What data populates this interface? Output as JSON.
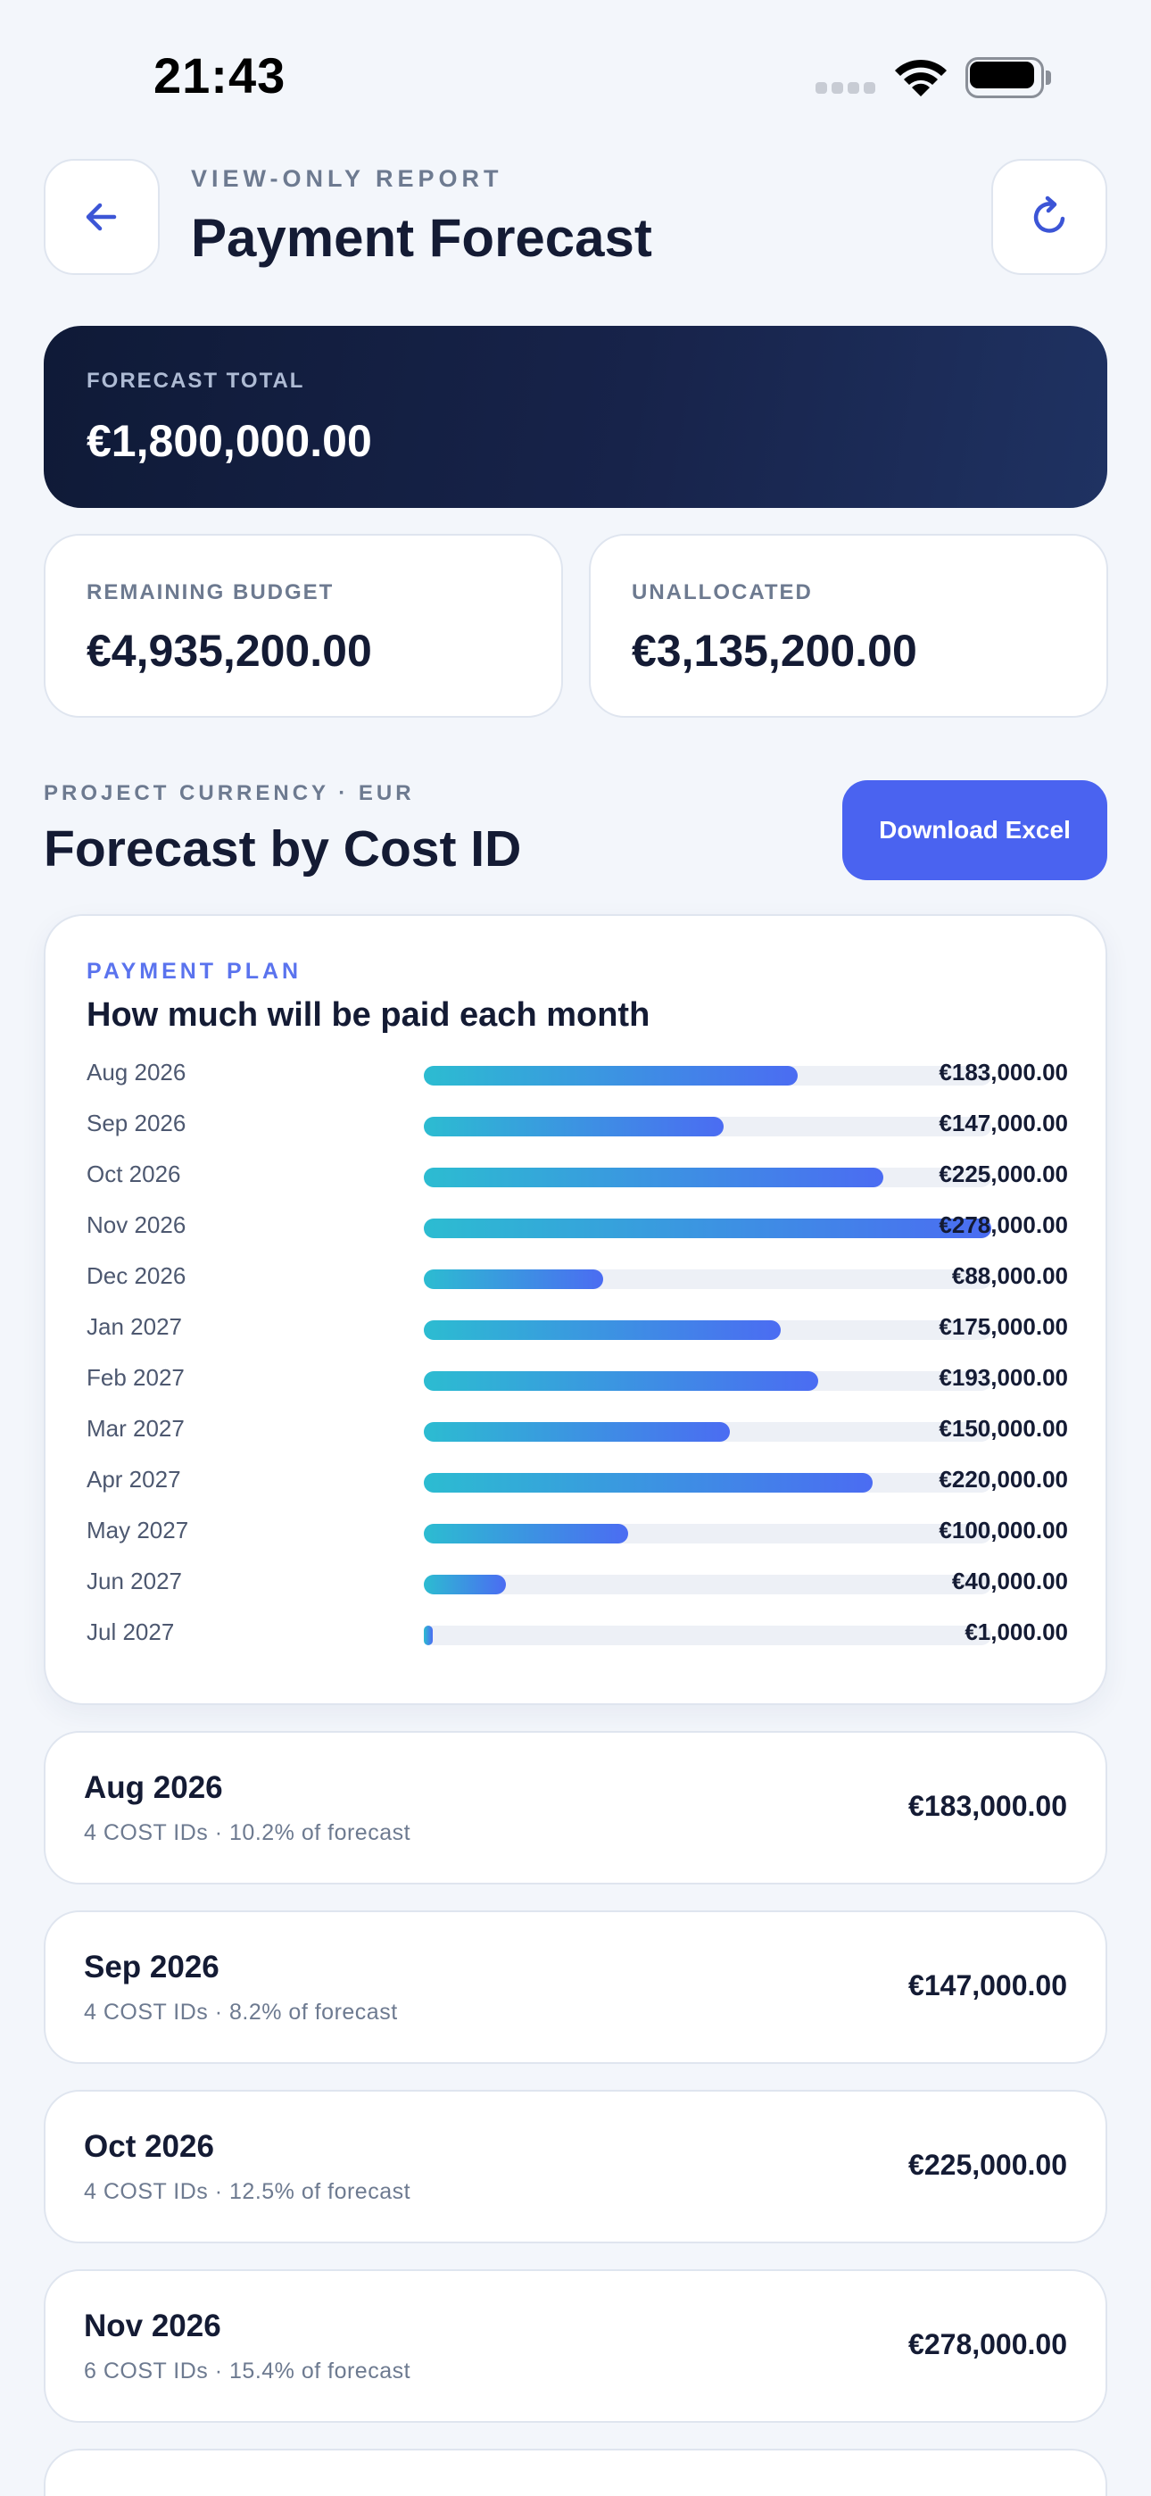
{
  "status_bar": {
    "time": "21:43"
  },
  "header": {
    "eyebrow": "VIEW-ONLY REPORT",
    "title": "Payment Forecast",
    "back_icon": "arrow-left-icon",
    "refresh_icon": "refresh-icon"
  },
  "summary": {
    "total_label": "FORECAST TOTAL",
    "total_value": "€1,800,000.00",
    "remaining_label": "REMAINING BUDGET",
    "remaining_value": "€4,935,200.00",
    "unallocated_label": "UNALLOCATED",
    "unallocated_value": "€3,135,200.00"
  },
  "section": {
    "eyebrow": "PROJECT CURRENCY · EUR",
    "title": "Forecast by Cost ID",
    "download_label": "Download Excel"
  },
  "chart": {
    "eyebrow": "PAYMENT PLAN",
    "title": "How much will be paid each month"
  },
  "chart_data": {
    "type": "bar",
    "orientation": "horizontal",
    "title": "How much will be paid each month",
    "categories": [
      "Aug 2026",
      "Sep 2026",
      "Oct 2026",
      "Nov 2026",
      "Dec 2026",
      "Jan 2027",
      "Feb 2027",
      "Mar 2027",
      "Apr 2027",
      "May 2027",
      "Jun 2027",
      "Jul 2027"
    ],
    "values": [
      183000,
      147000,
      225000,
      278000,
      88000,
      175000,
      193000,
      150000,
      220000,
      100000,
      40000,
      1000
    ],
    "value_labels": [
      "€183,000.00",
      "€147,000.00",
      "€225,000.00",
      "€278,000.00",
      "€88,000.00",
      "€175,000.00",
      "€193,000.00",
      "€150,000.00",
      "€220,000.00",
      "€100,000.00",
      "€40,000.00",
      "€1,000.00"
    ],
    "max": 278000,
    "colors": {
      "bar_start": "#2cbcd1",
      "bar_end": "#4b6cf2",
      "track": "#edf0f6"
    }
  },
  "months": [
    {
      "title": "Aug 2026",
      "sub": "4 COST IDs · 10.2% of forecast",
      "amount": "€183,000.00"
    },
    {
      "title": "Sep 2026",
      "sub": "4 COST IDs · 8.2% of forecast",
      "amount": "€147,000.00"
    },
    {
      "title": "Oct 2026",
      "sub": "4 COST IDs · 12.5% of forecast",
      "amount": "€225,000.00"
    },
    {
      "title": "Nov 2026",
      "sub": "6 COST IDs · 15.4% of forecast",
      "amount": "€278,000.00"
    }
  ],
  "colors": {
    "background": "#f3f6fb",
    "accent": "#4a63f0",
    "dark_card": "#17234a",
    "text": "#141b34",
    "muted": "#6d7a90"
  }
}
